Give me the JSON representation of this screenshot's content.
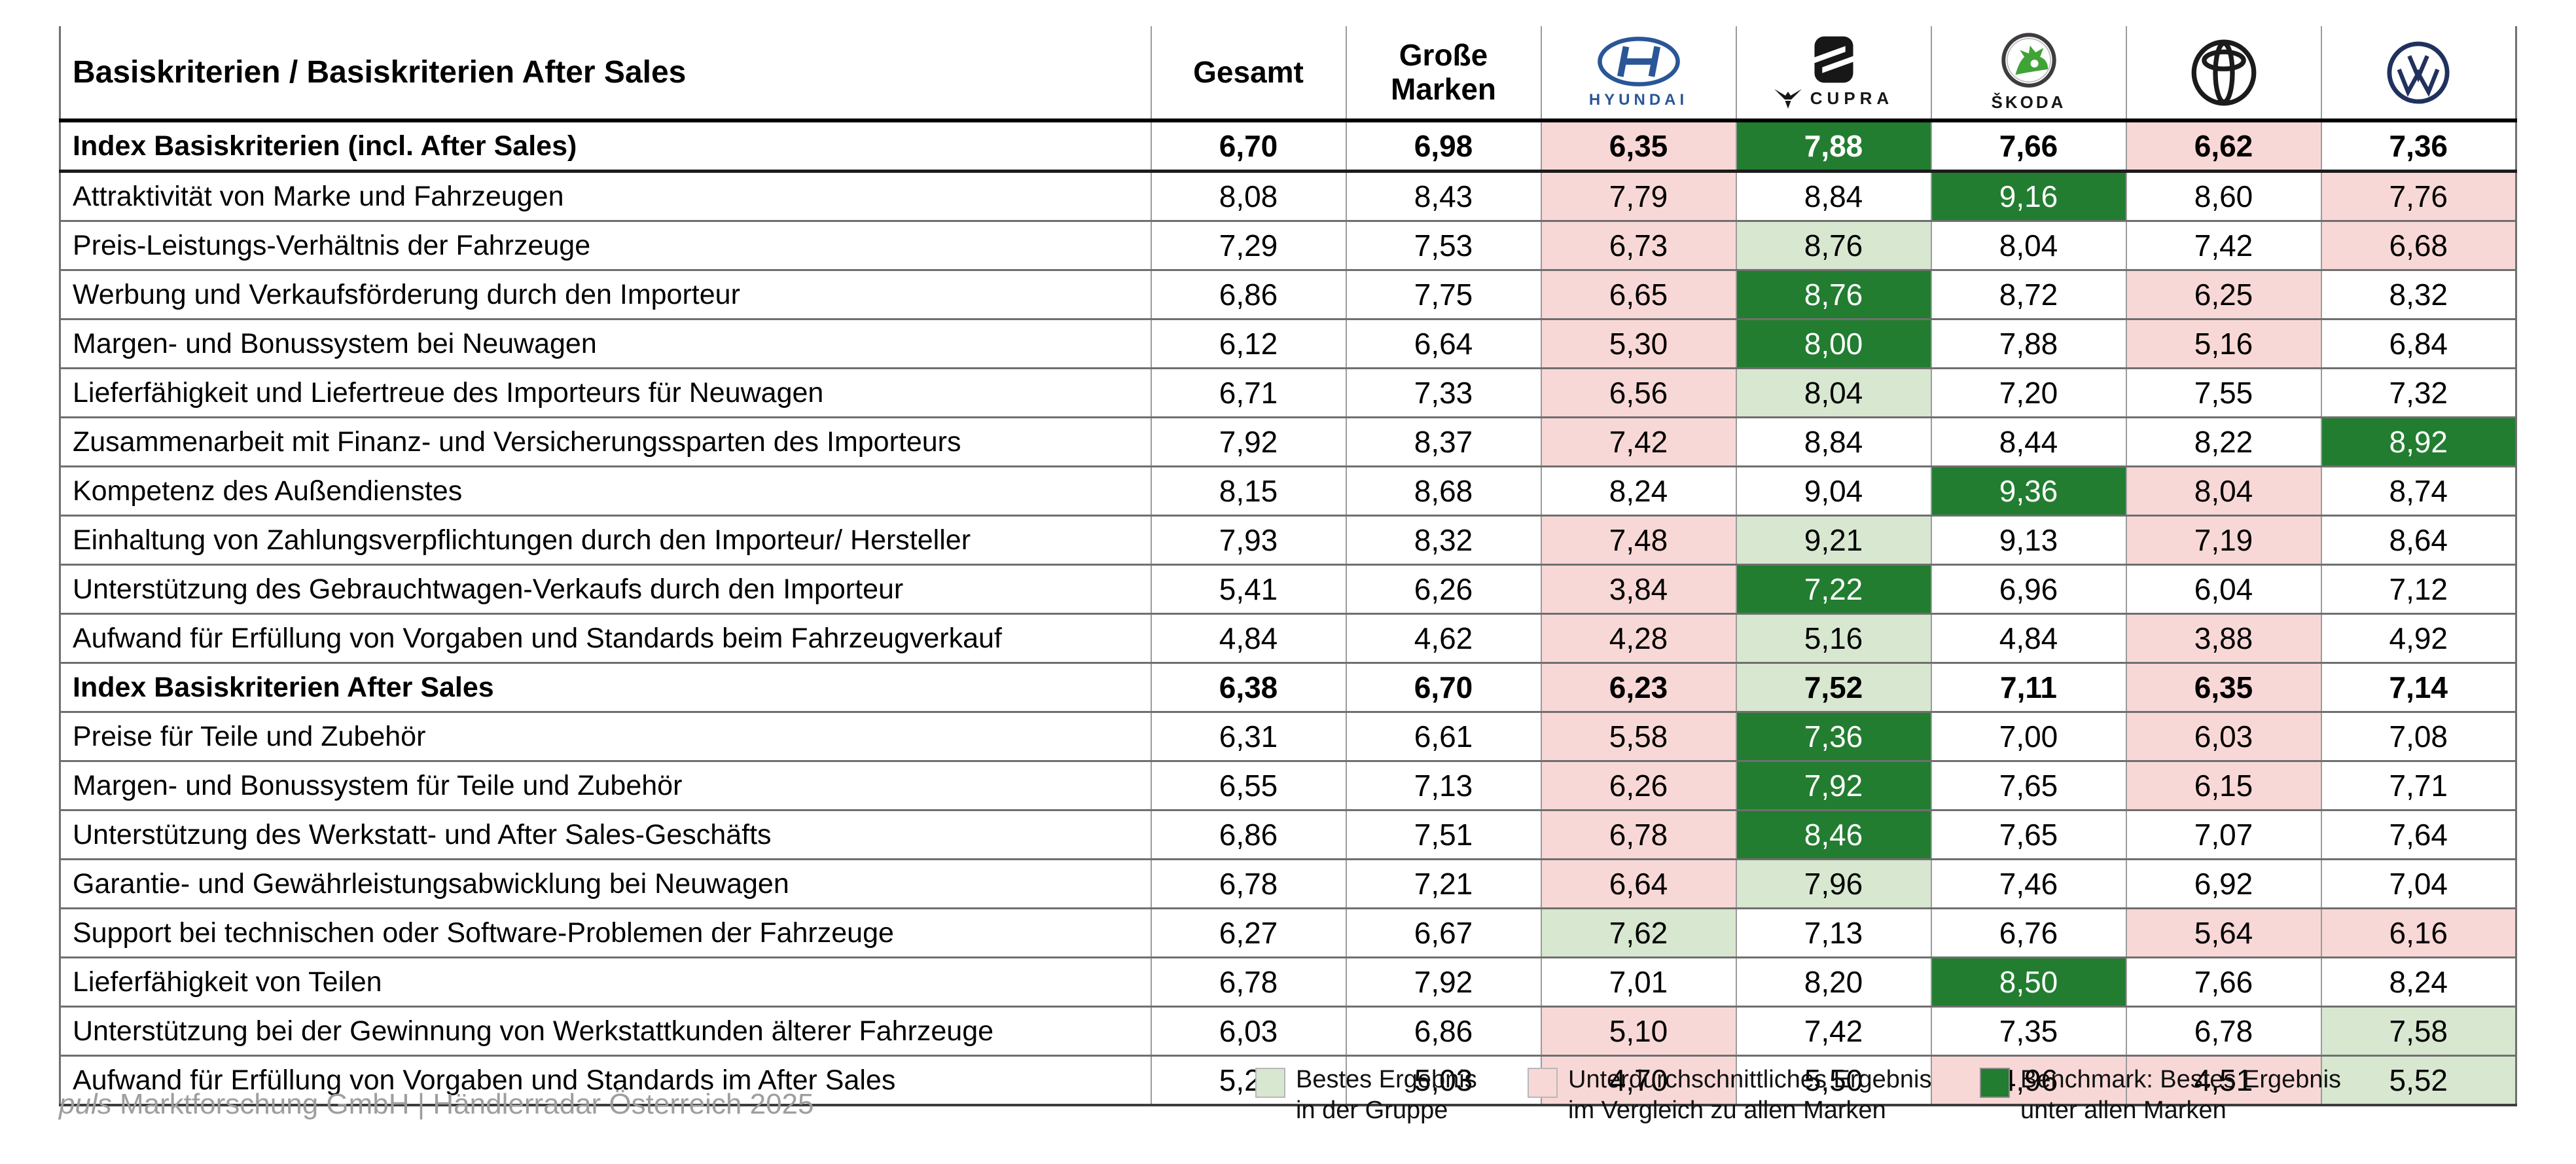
{
  "title": "Basiskriterien / Basiskriterien After Sales",
  "colors": {
    "benchmark": "#227d30",
    "best_in_group": "#d8e7d0",
    "below_average": "#f8d8d6",
    "grid_line": "#6f6f6f",
    "header_line": "#000000",
    "footer_text": "#9e9e9e",
    "hyundai_blue": "#2a5697",
    "skoda_green": "#3fa335",
    "vw_blue": "#20315e"
  },
  "header": {
    "criteria_label": "Basiskriterien / Basiskriterien After Sales",
    "gesamt_label": "Gesamt",
    "grosse_line1": "Große",
    "grosse_line2": "Marken",
    "brands": [
      {
        "id": "hyundai",
        "wordmark": "HYUNDAI"
      },
      {
        "id": "cupra",
        "wordmark": "CUPRA"
      },
      {
        "id": "skoda",
        "wordmark": "ŠKODA"
      },
      {
        "id": "toyota",
        "wordmark": ""
      },
      {
        "id": "volkswagen",
        "wordmark": ""
      }
    ]
  },
  "chart_data": {
    "type": "table",
    "columns": [
      "Gesamt",
      "Große Marken",
      "Hyundai",
      "Cupra",
      "Škoda",
      "Toyota",
      "Volkswagen"
    ],
    "value_range": [
      0,
      10
    ],
    "mark_codes": {
      "best": "Bestes Ergebnis in der Gruppe",
      "below": "Unterdurchschnittliches Ergebnis im Vergleich zu allen Marken",
      "bench": "Benchmark: Bestes Ergebnis unter allen Marken"
    },
    "rows": [
      {
        "label": "Index Basiskriterien (incl. After Sales)",
        "bold": true,
        "values": [
          "6,70",
          "6,98",
          "6,35",
          "7,88",
          "7,66",
          "6,62",
          "7,36"
        ],
        "marks": [
          "",
          "",
          "below",
          "bench",
          "",
          "below",
          ""
        ]
      },
      {
        "label": "Attraktivität von Marke und Fahrzeugen",
        "bold": false,
        "values": [
          "8,08",
          "8,43",
          "7,79",
          "8,84",
          "9,16",
          "8,60",
          "7,76"
        ],
        "marks": [
          "",
          "",
          "below",
          "",
          "bench",
          "",
          "below"
        ]
      },
      {
        "label": "Preis-Leistungs-Verhältnis der Fahrzeuge",
        "bold": false,
        "values": [
          "7,29",
          "7,53",
          "6,73",
          "8,76",
          "8,04",
          "7,42",
          "6,68"
        ],
        "marks": [
          "",
          "",
          "below",
          "best",
          "",
          "",
          "below"
        ]
      },
      {
        "label": "Werbung und Verkaufsförderung durch den Importeur",
        "bold": false,
        "values": [
          "6,86",
          "7,75",
          "6,65",
          "8,76",
          "8,72",
          "6,25",
          "8,32"
        ],
        "marks": [
          "",
          "",
          "below",
          "bench",
          "",
          "below",
          ""
        ]
      },
      {
        "label": "Margen- und Bonussystem bei Neuwagen",
        "bold": false,
        "values": [
          "6,12",
          "6,64",
          "5,30",
          "8,00",
          "7,88",
          "5,16",
          "6,84"
        ],
        "marks": [
          "",
          "",
          "below",
          "bench",
          "",
          "below",
          ""
        ]
      },
      {
        "label": "Lieferfähigkeit und Liefertreue des Importeurs für Neuwagen",
        "bold": false,
        "values": [
          "6,71",
          "7,33",
          "6,56",
          "8,04",
          "7,20",
          "7,55",
          "7,32"
        ],
        "marks": [
          "",
          "",
          "below",
          "best",
          "",
          "",
          ""
        ]
      },
      {
        "label": "Zusammenarbeit mit Finanz- und Versicherungssparten des Importeurs",
        "bold": false,
        "values": [
          "7,92",
          "8,37",
          "7,42",
          "8,84",
          "8,44",
          "8,22",
          "8,92"
        ],
        "marks": [
          "",
          "",
          "below",
          "",
          "",
          "",
          "bench"
        ]
      },
      {
        "label": "Kompetenz des Außendienstes",
        "bold": false,
        "values": [
          "8,15",
          "8,68",
          "8,24",
          "9,04",
          "9,36",
          "8,04",
          "8,74"
        ],
        "marks": [
          "",
          "",
          "",
          "",
          "bench",
          "below",
          ""
        ]
      },
      {
        "label": "Einhaltung von Zahlungsverpflichtungen durch den Importeur/ Hersteller",
        "bold": false,
        "values": [
          "7,93",
          "8,32",
          "7,48",
          "9,21",
          "9,13",
          "7,19",
          "8,64"
        ],
        "marks": [
          "",
          "",
          "below",
          "best",
          "",
          "below",
          ""
        ]
      },
      {
        "label": "Unterstützung des Gebrauchtwagen-Verkaufs durch den Importeur",
        "bold": false,
        "values": [
          "5,41",
          "6,26",
          "3,84",
          "7,22",
          "6,96",
          "6,04",
          "7,12"
        ],
        "marks": [
          "",
          "",
          "below",
          "bench",
          "",
          "",
          ""
        ]
      },
      {
        "label": "Aufwand für Erfüllung von Vorgaben und Standards beim Fahrzeugverkauf",
        "bold": false,
        "values": [
          "4,84",
          "4,62",
          "4,28",
          "5,16",
          "4,84",
          "3,88",
          "4,92"
        ],
        "marks": [
          "",
          "",
          "below",
          "best",
          "",
          "below",
          ""
        ]
      },
      {
        "label": "Index Basiskriterien After Sales",
        "bold": true,
        "values": [
          "6,38",
          "6,70",
          "6,23",
          "7,52",
          "7,11",
          "6,35",
          "7,14"
        ],
        "marks": [
          "",
          "",
          "below",
          "best",
          "",
          "below",
          ""
        ]
      },
      {
        "label": "Preise für Teile und Zubehör",
        "bold": false,
        "values": [
          "6,31",
          "6,61",
          "5,58",
          "7,36",
          "7,00",
          "6,03",
          "7,08"
        ],
        "marks": [
          "",
          "",
          "below",
          "bench",
          "",
          "below",
          ""
        ]
      },
      {
        "label": "Margen- und Bonussystem für Teile und Zubehör",
        "bold": false,
        "values": [
          "6,55",
          "7,13",
          "6,26",
          "7,92",
          "7,65",
          "6,15",
          "7,71"
        ],
        "marks": [
          "",
          "",
          "below",
          "bench",
          "",
          "below",
          ""
        ]
      },
      {
        "label": "Unterstützung des Werkstatt- und After Sales-Geschäfts",
        "bold": false,
        "values": [
          "6,86",
          "7,51",
          "6,78",
          "8,46",
          "7,65",
          "7,07",
          "7,64"
        ],
        "marks": [
          "",
          "",
          "below",
          "bench",
          "",
          "",
          ""
        ]
      },
      {
        "label": "Garantie- und Gewährleistungsabwicklung bei Neuwagen",
        "bold": false,
        "values": [
          "6,78",
          "7,21",
          "6,64",
          "7,96",
          "7,46",
          "6,92",
          "7,04"
        ],
        "marks": [
          "",
          "",
          "below",
          "best",
          "",
          "",
          ""
        ]
      },
      {
        "label": "Support bei technischen oder Software-Problemen der Fahrzeuge",
        "bold": false,
        "values": [
          "6,27",
          "6,67",
          "7,62",
          "7,13",
          "6,76",
          "5,64",
          "6,16"
        ],
        "marks": [
          "",
          "",
          "best",
          "",
          "",
          "below",
          "below"
        ]
      },
      {
        "label": "Lieferfähigkeit von Teilen",
        "bold": false,
        "values": [
          "6,78",
          "7,92",
          "7,01",
          "8,20",
          "8,50",
          "7,66",
          "8,24"
        ],
        "marks": [
          "",
          "",
          "",
          "",
          "bench",
          "",
          ""
        ]
      },
      {
        "label": "Unterstützung bei der Gewinnung von Werkstattkunden älterer Fahrzeuge",
        "bold": false,
        "values": [
          "6,03",
          "6,86",
          "5,10",
          "7,42",
          "7,35",
          "6,78",
          "7,58"
        ],
        "marks": [
          "",
          "",
          "below",
          "",
          "",
          "",
          "best"
        ]
      },
      {
        "label": "Aufwand für Erfüllung von Vorgaben und Standards im After Sales",
        "bold": false,
        "values": [
          "5,29",
          "5,03",
          "4,70",
          "5,50",
          "4,96",
          "4,51",
          "5,52"
        ],
        "marks": [
          "",
          "",
          "below",
          "",
          "below",
          "below",
          "best"
        ]
      }
    ]
  },
  "legend": [
    {
      "key": "best",
      "line1": "Bestes Ergebnis",
      "line2": "in der Gruppe"
    },
    {
      "key": "below",
      "line1": "Unterdurchschnittliches Ergebnis",
      "line2": "im Vergleich zu allen Marken"
    },
    {
      "key": "bench",
      "line1": "Benchmark: Bestes Ergebnis",
      "line2": "unter allen Marken"
    }
  ],
  "footer": {
    "brand": "puls",
    "rest": " Marktforschung GmbH | Händlerradar Österreich 2025"
  }
}
